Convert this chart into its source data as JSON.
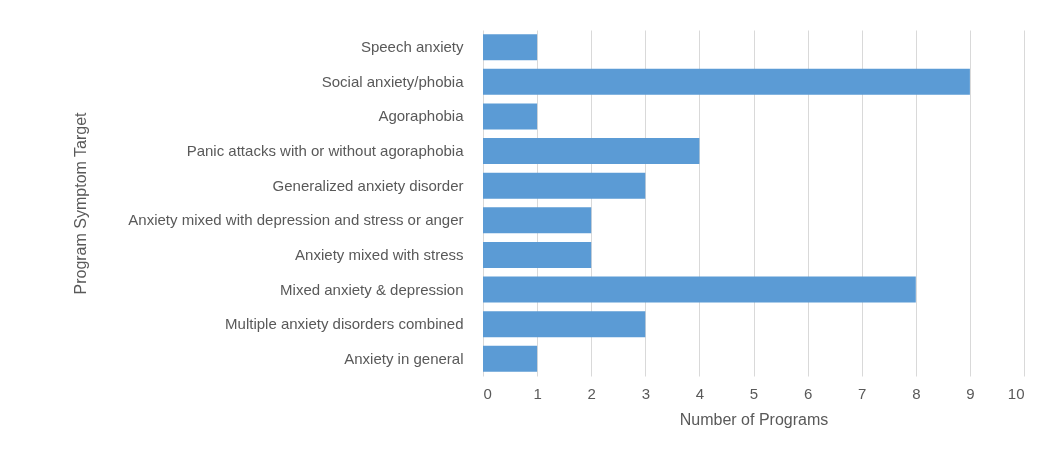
{
  "chart_data": {
    "type": "bar",
    "orientation": "horizontal",
    "xlabel": "Number of Programs",
    "ylabel": "Program Symptom Target",
    "categories": [
      "Speech anxiety",
      "Social anxiety/phobia",
      "Agoraphobia",
      "Panic attacks with or without agoraphobia",
      "Generalized anxiety disorder",
      "Anxiety mixed with depression and stress or anger",
      "Anxiety mixed with stress",
      "Mixed anxiety & depression",
      "Multiple anxiety disorders combined",
      "Anxiety in general"
    ],
    "values": [
      1,
      9,
      1,
      4,
      3,
      2,
      2,
      8,
      3,
      1
    ],
    "color": "#5b9bd5",
    "xlim": [
      0,
      10
    ],
    "xticks": [
      0,
      1,
      2,
      3,
      4,
      5,
      6,
      7,
      8,
      9,
      10
    ],
    "grid": "x"
  }
}
